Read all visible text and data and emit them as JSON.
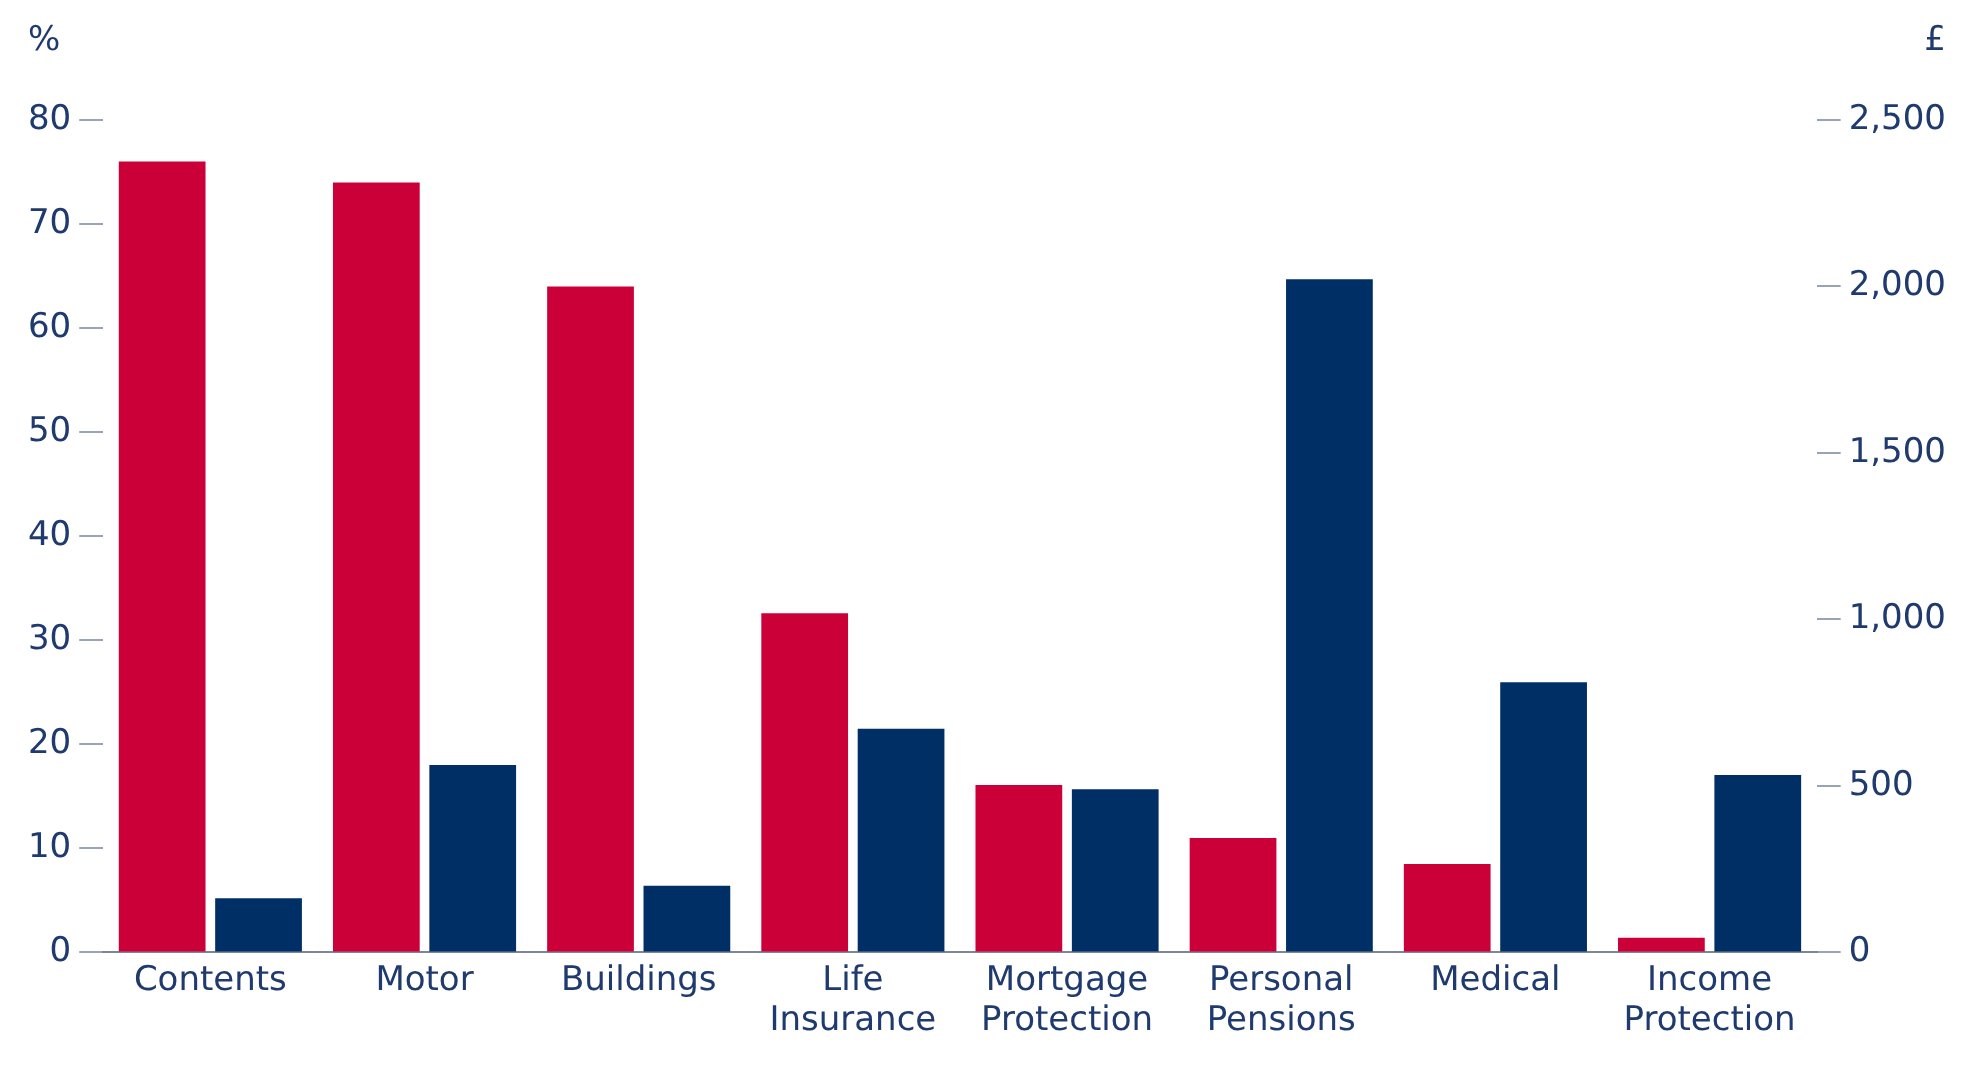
{
  "chart_data": {
    "type": "bar",
    "categories": [
      "Contents",
      "Motor",
      "Buildings",
      "Life Insurance",
      "Mortgage Protection",
      "Personal Pensions",
      "Medical",
      "Income Protection"
    ],
    "series": [
      {
        "color": "#cc0038",
        "values": [
          76,
          74,
          64,
          32.6,
          16.1,
          11,
          8.5,
          1.4
        ]
      },
      {
        "color": "#002f65",
        "axis": "y2",
        "values": [
          163,
          563,
          200,
          672,
          490,
          2022,
          811,
          533
        ]
      }
    ],
    "ylabel": "%",
    "y2label": "£",
    "ylim": [
      0,
      80
    ],
    "yticks": [
      0,
      10,
      20,
      30,
      40,
      50,
      60,
      70,
      80
    ],
    "y2lim": [
      0,
      2500
    ],
    "y2ticks": [
      0,
      500,
      {
        "value": 1000,
        "label": "1,000"
      },
      {
        "value": 1500,
        "label": "1,500"
      },
      {
        "value": 2000,
        "label": "2,000"
      },
      {
        "value": 2500,
        "label": "2,500"
      }
    ],
    "grid": false,
    "legend": false
  }
}
